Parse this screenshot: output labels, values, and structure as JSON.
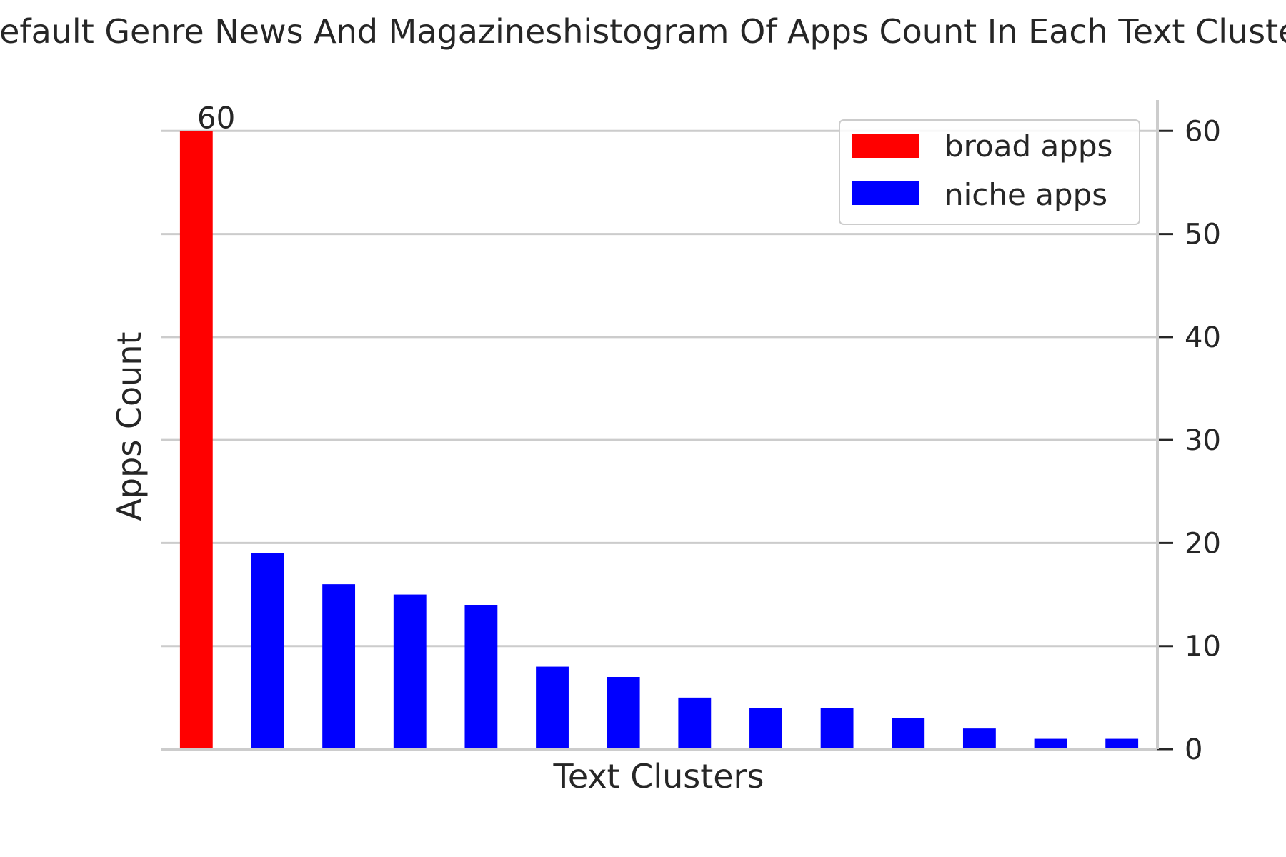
{
  "chart_data": {
    "type": "bar",
    "title": "Default Genre News And Magazineshistogram Of Apps Count In Each Text Cluster",
    "xlabel": "Text Clusters",
    "ylabel": "Apps Count",
    "ylim": [
      0,
      63
    ],
    "yticks": [
      0,
      10,
      20,
      30,
      40,
      50,
      60
    ],
    "y_tick_side": "right",
    "grid": "horizontal",
    "legend_position": "top-right",
    "categories": [
      "",
      "",
      "",
      "",
      "",
      "",
      "",
      "",
      "",
      "",
      "",
      "",
      "",
      ""
    ],
    "series": [
      {
        "name": "broad apps",
        "color": "#ff0000",
        "values": [
          60,
          null,
          null,
          null,
          null,
          null,
          null,
          null,
          null,
          null,
          null,
          null,
          null,
          null
        ]
      },
      {
        "name": "niche apps",
        "color": "#0000ff",
        "values": [
          null,
          19,
          16,
          15,
          14,
          8,
          7,
          5,
          4,
          4,
          3,
          2,
          1,
          1
        ]
      }
    ],
    "annotations": [
      {
        "category_index": 0,
        "text": "60"
      }
    ]
  }
}
